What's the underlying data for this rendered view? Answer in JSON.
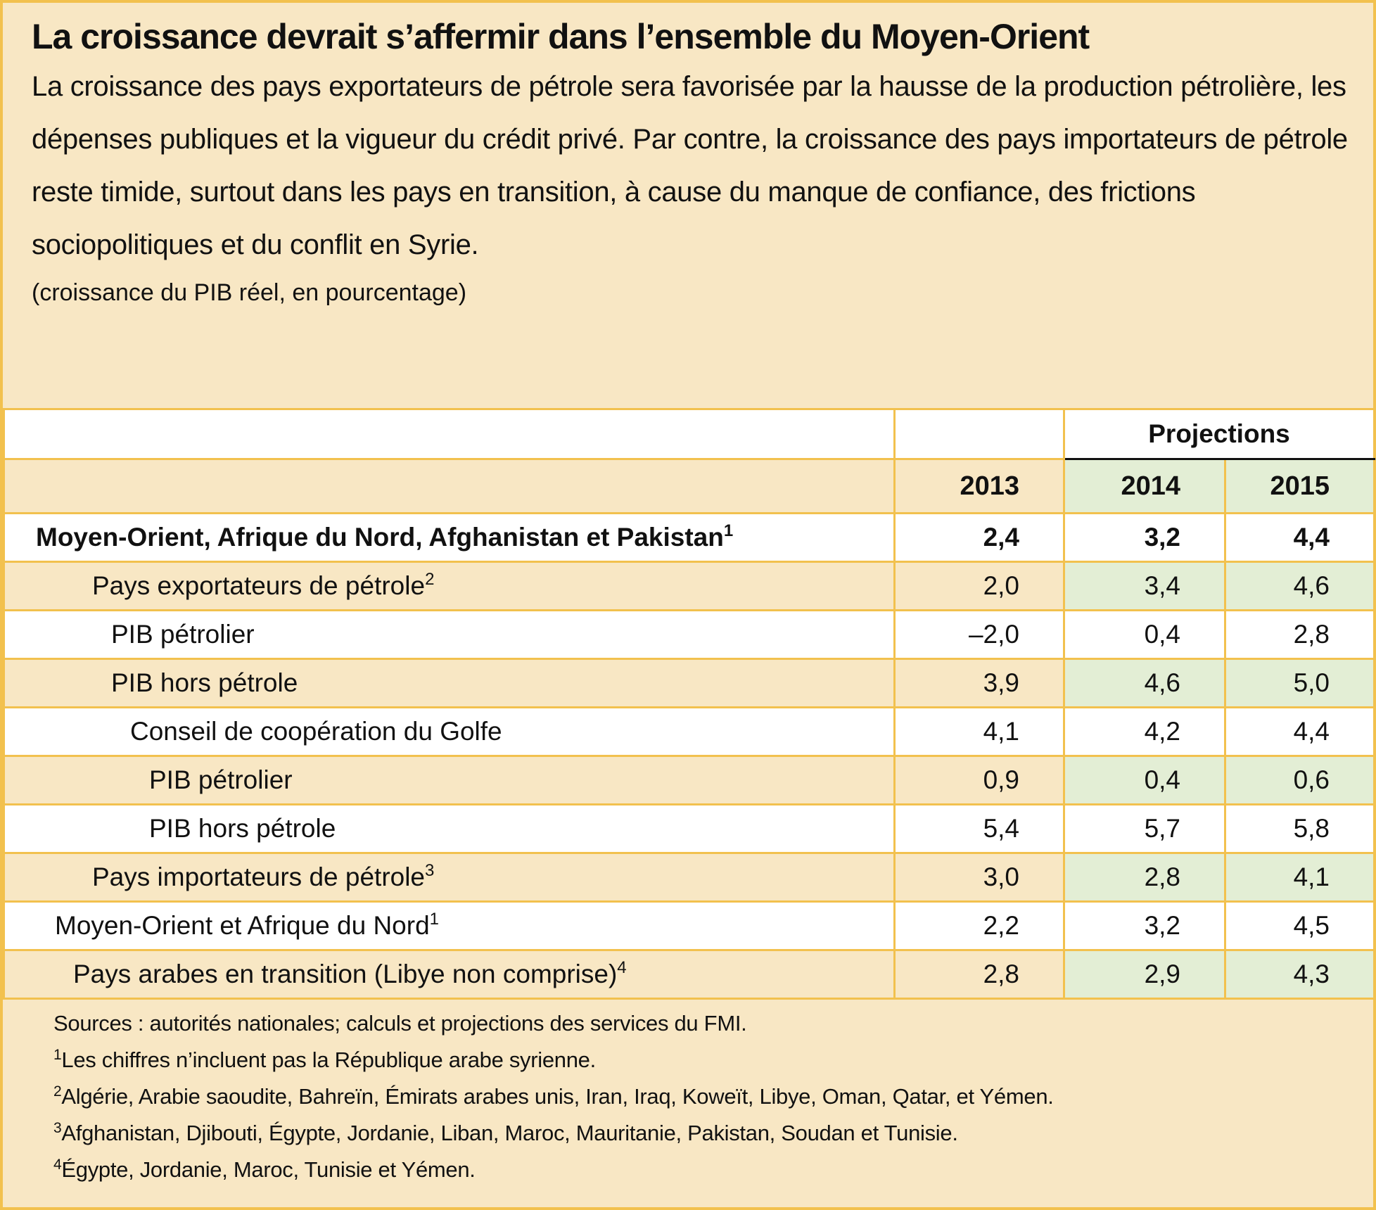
{
  "header": {
    "title": "La croissance devrait s’affermir dans l’ensemble du Moyen-Orient",
    "subtitle": "La croissance des pays exportateurs de pétrole sera favorisée par la hausse de la production pétrolière, les dépenses publiques et la vigueur du crédit privé. Par contre, la croissance des pays importateurs de pétrole reste timide, surtout dans les pays en transition, à cause du manque de confiance, des frictions sociopolitiques et du conflit en Syrie.",
    "unit_note": "(croissance du PIB réel, en pourcentage)"
  },
  "table": {
    "group_header": "Projections",
    "columns": [
      "2013",
      "2014",
      "2015"
    ],
    "rows": [
      {
        "label": "Moyen-Orient, Afrique du Nord, Afghanistan et Pakistan",
        "note": "1",
        "values": [
          "2,4",
          "3,2",
          "4,4"
        ]
      },
      {
        "label": "Pays exportateurs de pétrole",
        "note": "2",
        "values": [
          "2,0",
          "3,4",
          "4,6"
        ]
      },
      {
        "label": "PIB pétrolier",
        "values": [
          "–2,0",
          "0,4",
          "2,8"
        ]
      },
      {
        "label": "PIB hors pétrole",
        "values": [
          "3,9",
          "4,6",
          "5,0"
        ]
      },
      {
        "label": "Conseil de coopération du Golfe",
        "values": [
          "4,1",
          "4,2",
          "4,4"
        ]
      },
      {
        "label": "PIB pétrolier",
        "values": [
          "0,9",
          "0,4",
          "0,6"
        ]
      },
      {
        "label": "PIB hors pétrole",
        "values": [
          "5,4",
          "5,7",
          "5,8"
        ]
      },
      {
        "label": "Pays importateurs de pétrole",
        "note": "3",
        "values": [
          "3,0",
          "2,8",
          "4,1"
        ]
      },
      {
        "label": "Moyen-Orient et Afrique du Nord",
        "note": "1",
        "values": [
          "2,2",
          "3,2",
          "4,5"
        ]
      },
      {
        "label": "Pays arabes en transition (Libye non comprise)",
        "note": "4",
        "values": [
          "2,8",
          "2,9",
          "4,3"
        ]
      }
    ]
  },
  "footnotes": {
    "sources": "Sources : autorités nationales; calculs et projections des services du FMI.",
    "notes": [
      {
        "mark": "1",
        "text": "Les chiffres n’incluent pas la République arabe syrienne."
      },
      {
        "mark": "2",
        "text": "Algérie, Arabie saoudite, Bahreïn, Émirats arabes unis, Iran, Iraq, Koweït, Libye, Oman, Qatar, et Yémen."
      },
      {
        "mark": "3",
        "text": "Afghanistan, Djibouti, Égypte, Jordanie, Liban, Maroc, Mauritanie, Pakistan, Soudan et Tunisie."
      },
      {
        "mark": "4",
        "text": "Égypte, Jordanie, Maroc, Tunisie et Yémen."
      }
    ]
  }
}
